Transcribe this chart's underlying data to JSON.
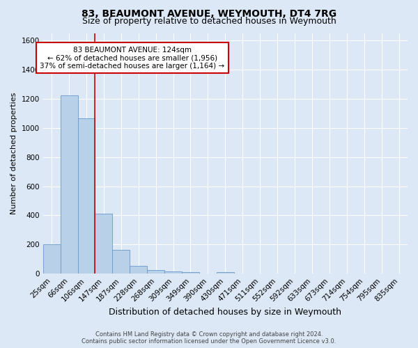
{
  "title": "83, BEAUMONT AVENUE, WEYMOUTH, DT4 7RG",
  "subtitle": "Size of property relative to detached houses in Weymouth",
  "xlabel": "Distribution of detached houses by size in Weymouth",
  "ylabel": "Number of detached properties",
  "footer_line1": "Contains HM Land Registry data © Crown copyright and database right 2024.",
  "footer_line2": "Contains public sector information licensed under the Open Government Licence v3.0.",
  "categories": [
    "25sqm",
    "66sqm",
    "106sqm",
    "147sqm",
    "187sqm",
    "228sqm",
    "268sqm",
    "309sqm",
    "349sqm",
    "390sqm",
    "430sqm",
    "471sqm",
    "511sqm",
    "552sqm",
    "592sqm",
    "633sqm",
    "673sqm",
    "714sqm",
    "754sqm",
    "795sqm",
    "835sqm"
  ],
  "values": [
    200,
    1225,
    1065,
    410,
    165,
    52,
    25,
    18,
    12,
    0,
    12,
    0,
    0,
    0,
    0,
    0,
    0,
    0,
    0,
    0,
    0
  ],
  "bar_color": "#b8d0e8",
  "bar_edge_color": "#6699cc",
  "red_line_x": 2.5,
  "red_line_color": "#cc0000",
  "ylim": [
    0,
    1650
  ],
  "yticks": [
    0,
    200,
    400,
    600,
    800,
    1000,
    1200,
    1400,
    1600
  ],
  "annotation_text": "83 BEAUMONT AVENUE: 124sqm\n← 62% of detached houses are smaller (1,956)\n37% of semi-detached houses are larger (1,164) →",
  "annotation_box_facecolor": "#ffffff",
  "annotation_box_edgecolor": "#cc0000",
  "bg_color": "#dce8f5",
  "plot_bg_color": "#dce8f5",
  "grid_color": "#ffffff",
  "title_fontsize": 10,
  "subtitle_fontsize": 9,
  "xlabel_fontsize": 9,
  "ylabel_fontsize": 8,
  "tick_fontsize": 7.5,
  "annotation_fontsize": 7.5,
  "footer_fontsize": 6
}
